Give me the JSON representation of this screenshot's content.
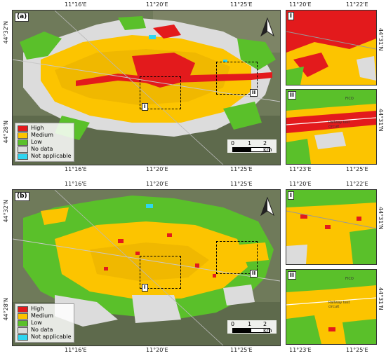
{
  "coords": {
    "lon_main": [
      "11°16'E",
      "11°20'E",
      "11°25'E"
    ],
    "lon_inset_top": [
      "11°20'E",
      "11°22'E"
    ],
    "lon_inset_bottom": [
      "11°23'E",
      "11°25'E"
    ],
    "lat_main_top": "44°32'N",
    "lat_main_bottom": "44°28'N",
    "lat_inset": "44°31'N"
  },
  "panels": [
    {
      "label": "(a)",
      "legend": [
        {
          "name": "High",
          "color": "#e31a1c"
        },
        {
          "name": "Medium",
          "color": "#fcc400"
        },
        {
          "name": "Low",
          "color": "#5ac02a"
        },
        {
          "name": "No data",
          "color": "#dcdcdc"
        },
        {
          "name": "Not applicable",
          "color": "#2ed5f0"
        }
      ],
      "markers": [
        "I",
        "II"
      ],
      "scale": [
        "0",
        "1",
        "2 km"
      ],
      "inset_labels": [
        "I",
        "II"
      ],
      "inset_tags": [
        "FICO",
        "Railway test circuit"
      ]
    },
    {
      "label": "(b)",
      "legend": [
        {
          "name": "High",
          "color": "#e31a1c"
        },
        {
          "name": "Medium",
          "color": "#fcc400"
        },
        {
          "name": "Low",
          "color": "#5ac02a"
        },
        {
          "name": "No data",
          "color": "#dcdcdc"
        },
        {
          "name": "Not applicable",
          "color": "#2ed5f0"
        }
      ],
      "markers": [
        "I",
        "II"
      ],
      "scale": [
        "0",
        "1",
        "2 km"
      ],
      "inset_labels": [
        "I",
        "II"
      ],
      "inset_tags": [
        "FICO",
        "Railway test circuit"
      ]
    }
  ],
  "colors": {
    "high": "#e31a1c",
    "medium": "#fcc400",
    "low": "#5ac02a",
    "nodata": "#dcdcdc",
    "na": "#2ed5f0",
    "satellite": "#6f7a5a"
  }
}
